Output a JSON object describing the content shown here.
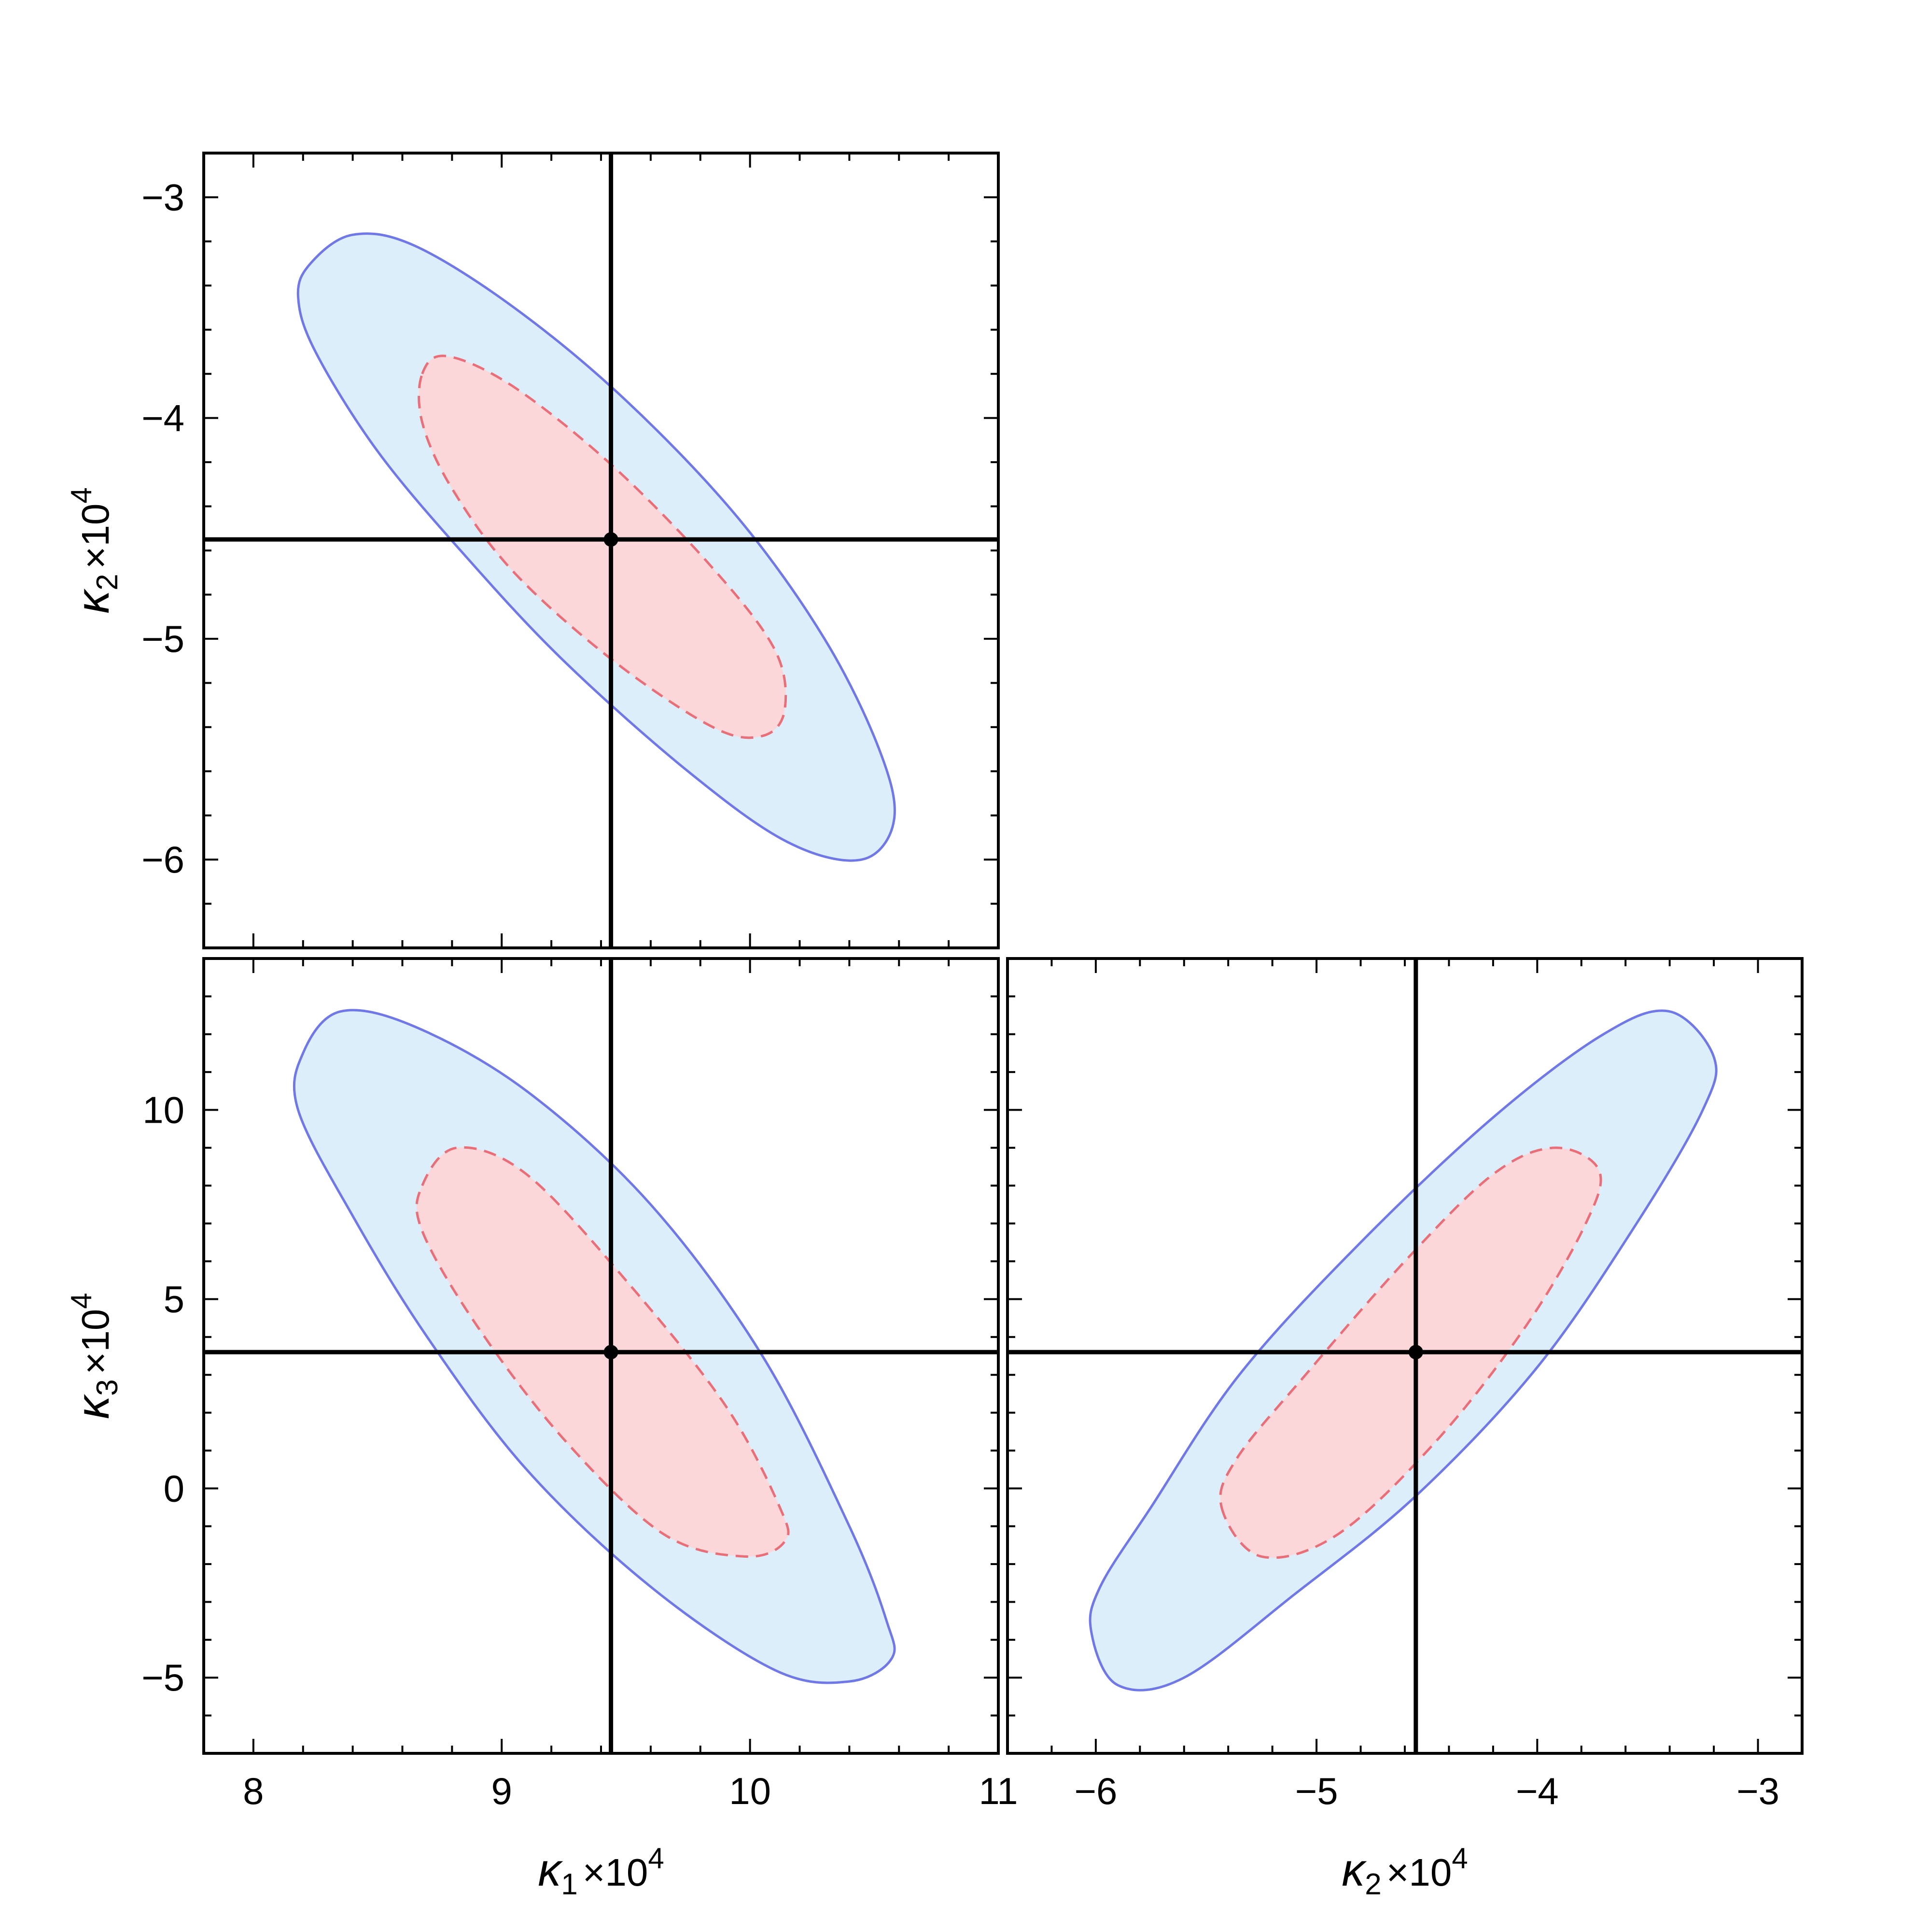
{
  "chart_data": [
    {
      "type": "contour",
      "panel": "kappa2-vs-kappa1",
      "xlabel": {
        "sym": "κ",
        "sub": "1",
        "tail": "×10",
        "sup": "4"
      },
      "ylabel": {
        "sym": "κ",
        "sub": "2",
        "tail": "×10",
        "sup": "4"
      },
      "xlim": [
        7.8,
        11
      ],
      "ylim": [
        -6.4,
        -2.8
      ],
      "xticks": [
        {
          "value": 8,
          "label": "8"
        },
        {
          "value": 9,
          "label": "9"
        },
        {
          "value": 10,
          "label": "10"
        },
        {
          "value": 11,
          "label": "11"
        }
      ],
      "yticks": [
        {
          "value": -6,
          "label": "−6"
        },
        {
          "value": -5,
          "label": "−5"
        },
        {
          "value": -4,
          "label": "−4"
        },
        {
          "value": -3,
          "label": "−3"
        }
      ],
      "show_x_tick_labels": false,
      "show_y_tick_labels": true,
      "best_fit": [
        9.44,
        -4.55
      ],
      "regions": [
        {
          "level": "outer",
          "color": "#ddeefb",
          "edge": "#6f78e6",
          "points": [
            [
              8.23,
              -3.3
            ],
            [
              8.4,
              -3.17
            ],
            [
              8.65,
              -3.22
            ],
            [
              9.05,
              -3.5
            ],
            [
              9.5,
              -3.92
            ],
            [
              9.95,
              -4.45
            ],
            [
              10.3,
              -5.0
            ],
            [
              10.52,
              -5.5
            ],
            [
              10.58,
              -5.82
            ],
            [
              10.45,
              -6.0
            ],
            [
              10.15,
              -5.92
            ],
            [
              9.75,
              -5.6
            ],
            [
              9.25,
              -5.1
            ],
            [
              8.85,
              -4.62
            ],
            [
              8.5,
              -4.15
            ],
            [
              8.25,
              -3.7
            ],
            [
              8.18,
              -3.45
            ]
          ]
        },
        {
          "level": "inner",
          "color": "#fbd7da",
          "edge": "#ea6e78",
          "points": [
            [
              8.68,
              -3.8
            ],
            [
              8.78,
              -3.72
            ],
            [
              9.05,
              -3.86
            ],
            [
              9.45,
              -4.22
            ],
            [
              9.85,
              -4.68
            ],
            [
              10.1,
              -5.05
            ],
            [
              10.14,
              -5.32
            ],
            [
              10.05,
              -5.44
            ],
            [
              9.85,
              -5.4
            ],
            [
              9.45,
              -5.1
            ],
            [
              9.05,
              -4.7
            ],
            [
              8.8,
              -4.32
            ],
            [
              8.68,
              -4.02
            ]
          ]
        }
      ]
    },
    {
      "type": "contour",
      "panel": "kappa3-vs-kappa1",
      "xlabel": {
        "sym": "κ",
        "sub": "1",
        "tail": "×10",
        "sup": "4"
      },
      "ylabel": {
        "sym": "κ",
        "sub": "3",
        "tail": "×10",
        "sup": "4"
      },
      "xlim": [
        7.8,
        11
      ],
      "ylim": [
        -7,
        14
      ],
      "xticks": [
        {
          "value": 8,
          "label": "8"
        },
        {
          "value": 9,
          "label": "9"
        },
        {
          "value": 10,
          "label": "10"
        },
        {
          "value": 11,
          "label": "11"
        }
      ],
      "yticks": [
        {
          "value": -5,
          "label": "−5"
        },
        {
          "value": 0,
          "label": "0"
        },
        {
          "value": 5,
          "label": "5"
        },
        {
          "value": 10,
          "label": "10"
        }
      ],
      "show_x_tick_labels": true,
      "show_y_tick_labels": true,
      "best_fit": [
        9.44,
        3.6
      ],
      "regions": [
        {
          "level": "outer",
          "color": "#ddeefb",
          "edge": "#6f78e6",
          "points": [
            [
              8.2,
              11.5
            ],
            [
              8.35,
              12.6
            ],
            [
              8.65,
              12.2
            ],
            [
              9.1,
              10.5
            ],
            [
              9.6,
              7.5
            ],
            [
              10.05,
              3.5
            ],
            [
              10.4,
              -1.0
            ],
            [
              10.55,
              -3.5
            ],
            [
              10.57,
              -4.5
            ],
            [
              10.4,
              -5.1
            ],
            [
              10.1,
              -4.8
            ],
            [
              9.6,
              -2.6
            ],
            [
              9.1,
              0.5
            ],
            [
              8.7,
              4.0
            ],
            [
              8.4,
              7.2
            ],
            [
              8.18,
              10.0
            ]
          ]
        },
        {
          "level": "inner",
          "color": "#fbd7da",
          "edge": "#ea6e78",
          "points": [
            [
              8.68,
              8.0
            ],
            [
              8.82,
              9.0
            ],
            [
              9.1,
              8.3
            ],
            [
              9.5,
              5.5
            ],
            [
              9.9,
              2.2
            ],
            [
              10.12,
              -0.5
            ],
            [
              10.14,
              -1.4
            ],
            [
              9.98,
              -1.8
            ],
            [
              9.65,
              -1.2
            ],
            [
              9.25,
              1.3
            ],
            [
              8.9,
              4.3
            ],
            [
              8.68,
              6.8
            ]
          ]
        }
      ]
    },
    {
      "type": "contour",
      "panel": "kappa3-vs-kappa2",
      "xlabel": {
        "sym": "κ",
        "sub": "2",
        "tail": "×10",
        "sup": "4"
      },
      "ylabel": null,
      "xlim": [
        -6.4,
        -2.8
      ],
      "ylim": [
        -7,
        14
      ],
      "xticks": [
        {
          "value": -6,
          "label": "−6"
        },
        {
          "value": -5,
          "label": "−5"
        },
        {
          "value": -4,
          "label": "−4"
        },
        {
          "value": -3,
          "label": "−3"
        }
      ],
      "yticks": [
        {
          "value": -5,
          "label": ""
        },
        {
          "value": 0,
          "label": ""
        },
        {
          "value": 5,
          "label": ""
        },
        {
          "value": 10,
          "label": ""
        }
      ],
      "show_x_tick_labels": true,
      "show_y_tick_labels": false,
      "best_fit": [
        -4.55,
        3.6
      ],
      "regions": [
        {
          "level": "outer",
          "color": "#ddeefb",
          "edge": "#6f78e6",
          "points": [
            [
              -6.02,
              -3.8
            ],
            [
              -5.9,
              -5.2
            ],
            [
              -5.6,
              -5.0
            ],
            [
              -5.1,
              -2.8
            ],
            [
              -4.55,
              -0.2
            ],
            [
              -4.0,
              3.2
            ],
            [
              -3.55,
              7.0
            ],
            [
              -3.25,
              10.0
            ],
            [
              -3.2,
              11.4
            ],
            [
              -3.4,
              12.6
            ],
            [
              -3.7,
              12.0
            ],
            [
              -4.2,
              9.8
            ],
            [
              -4.8,
              6.5
            ],
            [
              -5.35,
              3.0
            ],
            [
              -5.75,
              -0.5
            ],
            [
              -5.98,
              -2.6
            ]
          ]
        },
        {
          "level": "inner",
          "color": "#fbd7da",
          "edge": "#ea6e78",
          "points": [
            [
              -5.43,
              -0.5
            ],
            [
              -5.25,
              -1.8
            ],
            [
              -4.9,
              -1.2
            ],
            [
              -4.45,
              1.3
            ],
            [
              -4.05,
              4.3
            ],
            [
              -3.78,
              7.0
            ],
            [
              -3.72,
              8.4
            ],
            [
              -3.92,
              9.0
            ],
            [
              -4.2,
              8.3
            ],
            [
              -4.6,
              6.0
            ],
            [
              -5.05,
              3.0
            ],
            [
              -5.36,
              0.8
            ]
          ]
        }
      ]
    }
  ]
}
